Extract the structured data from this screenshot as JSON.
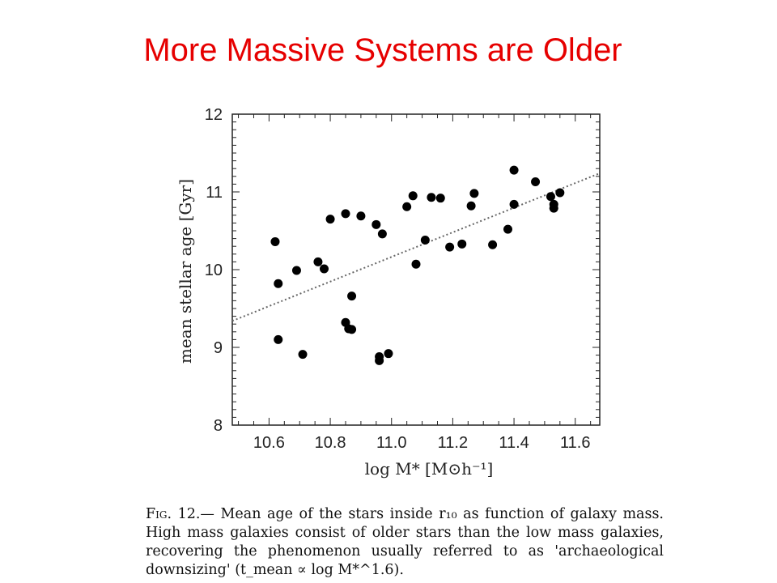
{
  "slide_title": "More Massive Systems are Older",
  "caption": {
    "fig_label": "Fig. 12.—",
    "text": "Mean age of the stars inside r₁₀ as function of galaxy mass. High mass galaxies consist of older stars than the low mass galaxies, recovering the phenomenon usually referred to as 'archaeological downsizing' (t_mean ∝ log M*^1.6)."
  },
  "chart_data": {
    "type": "scatter",
    "title": "",
    "xlabel": "log M* [M⊙h⁻¹]",
    "ylabel": "mean stellar age [Gyr]",
    "xlim": [
      10.48,
      11.68
    ],
    "ylim": [
      8,
      12
    ],
    "xticks": [
      "10.6",
      "10.8",
      "11.0",
      "11.2",
      "11.4",
      "11.6"
    ],
    "yticks": [
      "8",
      "9",
      "10",
      "11",
      "12"
    ],
    "grid": false,
    "fit_line": {
      "style": "dotted",
      "x": [
        10.48,
        11.68
      ],
      "y": [
        9.34,
        11.24
      ]
    },
    "points": [
      [
        10.62,
        10.36
      ],
      [
        10.63,
        9.82
      ],
      [
        10.63,
        9.1
      ],
      [
        10.69,
        9.99
      ],
      [
        10.71,
        8.91
      ],
      [
        10.76,
        10.1
      ],
      [
        10.78,
        10.01
      ],
      [
        10.8,
        10.65
      ],
      [
        10.85,
        10.72
      ],
      [
        10.85,
        9.32
      ],
      [
        10.86,
        9.24
      ],
      [
        10.87,
        9.23
      ],
      [
        10.87,
        9.66
      ],
      [
        10.9,
        10.69
      ],
      [
        10.95,
        10.58
      ],
      [
        10.97,
        10.46
      ],
      [
        10.96,
        8.88
      ],
      [
        10.96,
        8.83
      ],
      [
        10.99,
        8.92
      ],
      [
        11.05,
        10.81
      ],
      [
        11.07,
        10.95
      ],
      [
        11.08,
        10.07
      ],
      [
        11.11,
        10.38
      ],
      [
        11.13,
        10.93
      ],
      [
        11.16,
        10.92
      ],
      [
        11.19,
        10.29
      ],
      [
        11.23,
        10.33
      ],
      [
        11.26,
        10.82
      ],
      [
        11.27,
        10.98
      ],
      [
        11.33,
        10.32
      ],
      [
        11.38,
        10.52
      ],
      [
        11.4,
        10.84
      ],
      [
        11.4,
        11.28
      ],
      [
        11.47,
        11.13
      ],
      [
        11.52,
        10.94
      ],
      [
        11.53,
        10.84
      ],
      [
        11.53,
        10.79
      ],
      [
        11.55,
        10.99
      ]
    ]
  }
}
